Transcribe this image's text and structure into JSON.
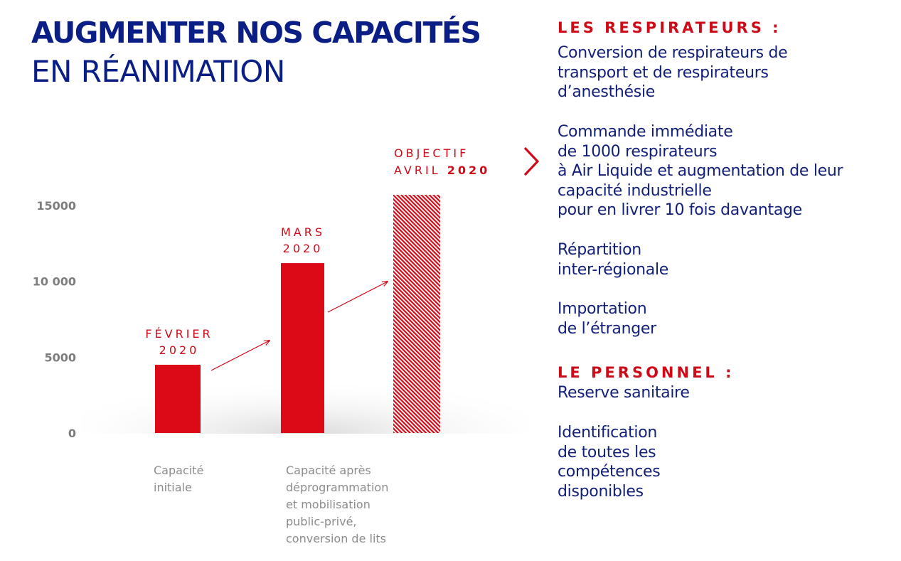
{
  "title": {
    "line1": "AUGMENTER NOS CAPACITÉS",
    "line2": "EN RÉANIMATION"
  },
  "colors": {
    "navy": "#13207a",
    "red": "#cf0a18",
    "grey": "#8c8c8c"
  },
  "chart_data": {
    "type": "bar",
    "categories": [
      "FÉVRIER 2020",
      "MARS 2020",
      "OBJECTIF AVRIL 2020"
    ],
    "values": [
      4500,
      11200,
      15700
    ],
    "period_labels": [
      {
        "lines": [
          "FÉVRIER",
          "2020"
        ]
      },
      {
        "lines": [
          "MARS",
          "2020"
        ]
      },
      {
        "lines": [
          "OBJECTIF",
          "AVRIL 2020"
        ],
        "bold_part": "2020"
      }
    ],
    "bar_styles": [
      "solid",
      "solid",
      "hatched"
    ],
    "y_ticks": [
      {
        "value": 0,
        "label": "0"
      },
      {
        "value": 5000,
        "label": "5000"
      },
      {
        "value": 10000,
        "label": "10 000"
      },
      {
        "value": 15000,
        "label": "15000"
      }
    ],
    "ylim": [
      0,
      15000
    ],
    "category_captions": [
      "Capacité\ninitiale",
      "Capacité après\ndéprogrammation\net mobilisation\npublic-privé,\nconversion de lits",
      ""
    ],
    "grid": false,
    "legend": "none"
  },
  "sections": [
    {
      "heading": "LES RESPIRATEURS :",
      "items": [
        "Conversion de respirateurs de\ntransport et de respirateurs\nd’anesthésie",
        "Commande immédiate\nde 1000 respirateurs\nà Air Liquide et augmentation de leur\ncapacité industrielle\npour en livrer 10 fois davantage",
        "Répartition\ninter-régionale",
        "Importation\nde l’étranger"
      ]
    },
    {
      "heading": "LE PERSONNEL :",
      "items": [
        "Reserve sanitaire",
        "Identification\nde toutes les\ncompétences\ndisponibles"
      ]
    }
  ]
}
